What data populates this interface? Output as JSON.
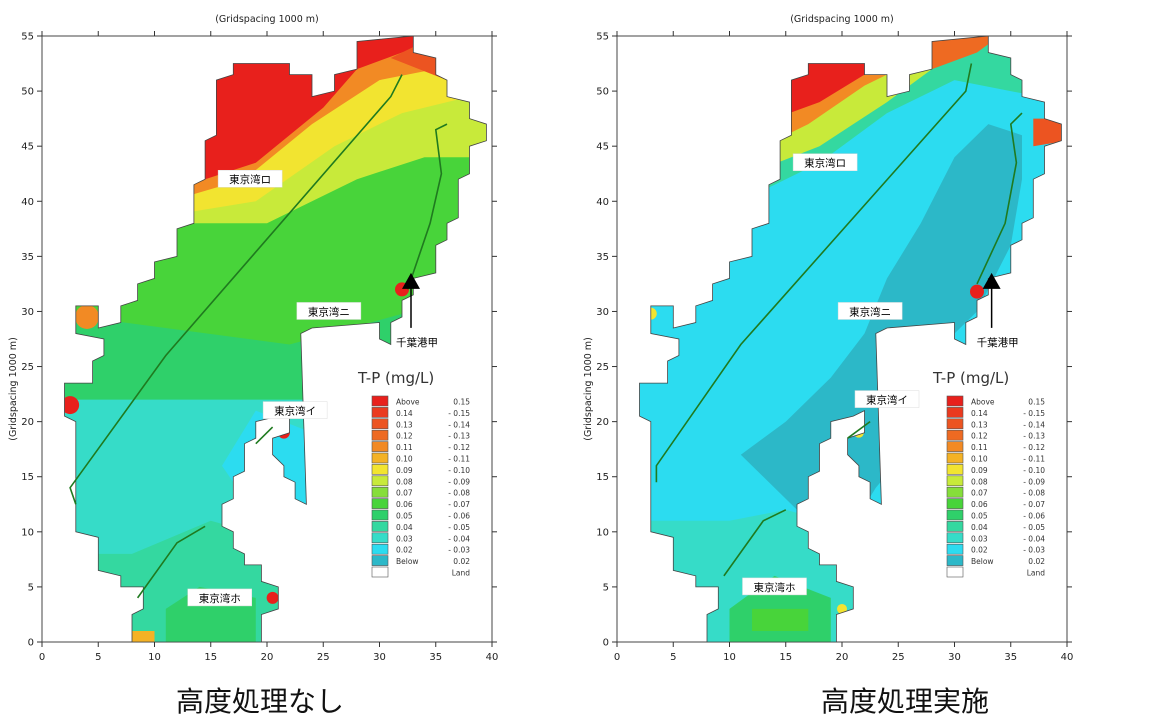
{
  "panels": [
    {
      "id": "left",
      "top_label": "(Gridspacing 1000 m)",
      "side_label": "(Gridspacing 1000 m)",
      "x_ticks": [
        "0",
        "5",
        "10",
        "15",
        "20",
        "25",
        "30",
        "35",
        "40"
      ],
      "y_ticks": [
        "0",
        "5",
        "10",
        "15",
        "20",
        "25",
        "30",
        "35",
        "40",
        "45",
        "50",
        "55"
      ],
      "x_range": [
        0,
        40
      ],
      "y_range": [
        0,
        55
      ],
      "caption": "高度処理なし",
      "stations": [
        {
          "label": "東京湾ロ",
          "x": 18.5,
          "y": 42
        },
        {
          "label": "東京湾ニ",
          "x": 25.5,
          "y": 30
        },
        {
          "label": "東京湾イ",
          "x": 22.5,
          "y": 21
        },
        {
          "label": "東京湾ホ",
          "x": 15.8,
          "y": 4
        }
      ],
      "arrow_label": "千葉港甲",
      "legend_title": "T-P (mg/L)"
    },
    {
      "id": "right",
      "top_label": "(Gridspacing 1000 m)",
      "side_label": "(Gridspacing 1000 m)",
      "x_ticks": [
        "0",
        "5",
        "10",
        "15",
        "20",
        "25",
        "30",
        "35",
        "40"
      ],
      "y_ticks": [
        "0",
        "5",
        "10",
        "15",
        "20",
        "25",
        "30",
        "35",
        "40",
        "45",
        "50",
        "55"
      ],
      "x_range": [
        0,
        40
      ],
      "y_range": [
        0,
        55
      ],
      "caption": "高度処理実施",
      "stations": [
        {
          "label": "東京湾ロ",
          "x": 18.5,
          "y": 43.5
        },
        {
          "label": "東京湾ニ",
          "x": 22.5,
          "y": 30
        },
        {
          "label": "東京湾イ",
          "x": 24.0,
          "y": 22
        },
        {
          "label": "東京湾ホ",
          "x": 14.0,
          "y": 5
        }
      ],
      "arrow_label": "千葉港甲",
      "legend_title": "T-P (mg/L)"
    }
  ],
  "legend_items": [
    {
      "left": "Above",
      "right": "0.15",
      "color": "#e8201c"
    },
    {
      "left": "0.14",
      "right": "- 0.15",
      "color": "#ea3a1f"
    },
    {
      "left": "0.13",
      "right": "- 0.14",
      "color": "#ec5421"
    },
    {
      "left": "0.12",
      "right": "- 0.13",
      "color": "#ee6a22"
    },
    {
      "left": "0.11",
      "right": "- 0.12",
      "color": "#f28a24"
    },
    {
      "left": "0.10",
      "right": "- 0.11",
      "color": "#f4b225"
    },
    {
      "left": "0.09",
      "right": "- 0.10",
      "color": "#f2e430"
    },
    {
      "left": "0.08",
      "right": "- 0.09",
      "color": "#c8ea3a"
    },
    {
      "left": "0.07",
      "right": "- 0.08",
      "color": "#86de3a"
    },
    {
      "left": "0.06",
      "right": "- 0.07",
      "color": "#48d43a"
    },
    {
      "left": "0.05",
      "right": "- 0.06",
      "color": "#2fd06a"
    },
    {
      "left": "0.04",
      "right": "- 0.05",
      "color": "#34d8a0"
    },
    {
      "left": "0.03",
      "right": "- 0.04",
      "color": "#36dcc8"
    },
    {
      "left": "0.02",
      "right": "- 0.03",
      "color": "#2cdcf0"
    },
    {
      "left": "Below",
      "right": "0.02",
      "color": "#2cb8c8"
    },
    {
      "left": "",
      "right": "Land",
      "color": "#ffffff"
    }
  ]
}
